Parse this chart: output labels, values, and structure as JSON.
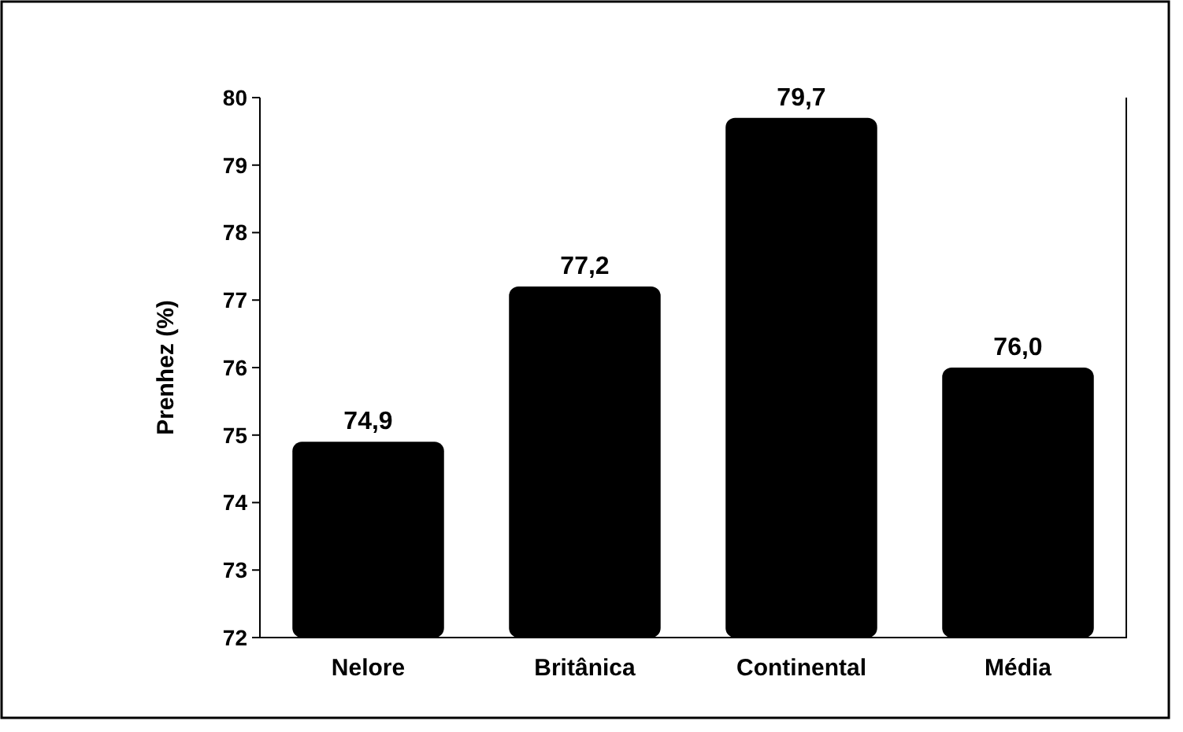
{
  "chart_data": {
    "type": "bar",
    "ylabel": "Prenhez (%)",
    "categories": [
      "Nelore",
      "Britânica",
      "Continental",
      "Média"
    ],
    "values": [
      74.9,
      77.2,
      79.7,
      76.0
    ],
    "value_labels": [
      "74,9",
      "77,2",
      "79,7",
      "76,0"
    ],
    "color": "#000000",
    "ylim": [
      72,
      80
    ],
    "yticks": [
      72,
      73,
      74,
      75,
      76,
      77,
      78,
      79,
      80
    ],
    "grid": false
  }
}
